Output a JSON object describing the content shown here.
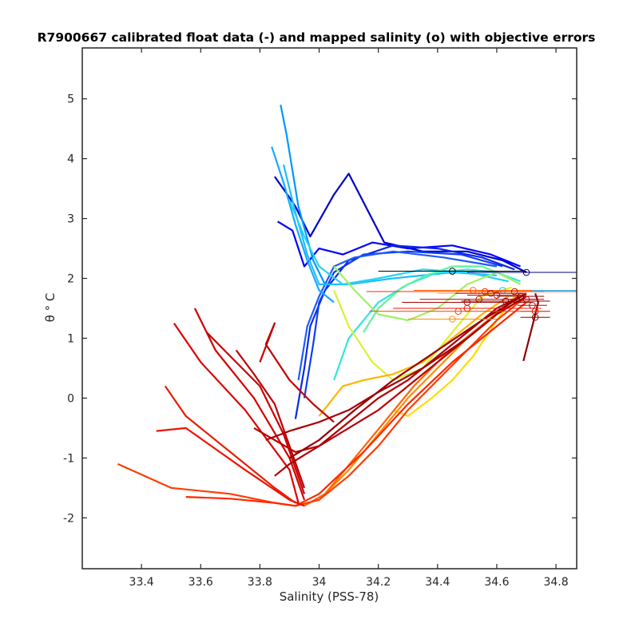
{
  "chart_data": {
    "type": "line",
    "title": "R7900667 calibrated float data (-) and mapped salinity (o) with objective errors",
    "xlabel": "Salinity (PSS-78)",
    "ylabel": "θ ° C",
    "xlim": [
      33.2,
      34.87
    ],
    "ylim": [
      -2.85,
      5.85
    ],
    "xticks": [
      "33.4",
      "33.6",
      "33.8",
      "34",
      "34.2",
      "34.4",
      "34.6",
      "34.8"
    ],
    "xtick_values": [
      33.4,
      33.6,
      33.8,
      34.0,
      34.2,
      34.4,
      34.6,
      34.8
    ],
    "yticks": [
      "-2",
      "-1",
      "0",
      "1",
      "2",
      "3",
      "4",
      "5"
    ],
    "ytick_values": [
      -2,
      -1,
      0,
      1,
      2,
      3,
      4,
      5
    ],
    "grid": false,
    "colormap": "jet",
    "series": [
      {
        "color": "#0000c8",
        "x": [
          33.85,
          33.9,
          33.92,
          33.97,
          34.05,
          34.1,
          34.22,
          34.35,
          34.5,
          34.62,
          34.7
        ],
        "y": [
          3.7,
          3.35,
          3.2,
          2.7,
          3.4,
          3.75,
          2.6,
          2.45,
          2.45,
          2.3,
          2.1
        ]
      },
      {
        "color": "#0000ff",
        "x": [
          33.86,
          33.91,
          33.95,
          34.0,
          34.08,
          34.18,
          34.3,
          34.45,
          34.58,
          34.68
        ],
        "y": [
          2.95,
          2.8,
          2.2,
          2.5,
          2.4,
          2.6,
          2.5,
          2.55,
          2.4,
          2.2
        ]
      },
      {
        "color": "#0a28e6",
        "x": [
          33.92,
          33.95,
          33.97,
          34.02,
          34.1,
          34.25,
          34.4,
          34.55,
          34.66
        ],
        "y": [
          -0.35,
          0.5,
          1.2,
          1.8,
          2.3,
          2.55,
          2.5,
          2.35,
          2.15
        ]
      },
      {
        "color": "#0f3cf0",
        "x": [
          33.95,
          33.98,
          34.0,
          34.05,
          34.15,
          34.3,
          34.48,
          34.62
        ],
        "y": [
          0.0,
          0.9,
          1.6,
          2.1,
          2.4,
          2.45,
          2.4,
          2.2
        ]
      },
      {
        "color": "#1e5aff",
        "x": [
          33.93,
          33.96,
          34.0,
          34.05,
          34.12,
          34.25,
          34.42,
          34.6
        ],
        "y": [
          0.3,
          1.2,
          1.7,
          2.2,
          2.35,
          2.45,
          2.35,
          2.2
        ]
      },
      {
        "color": "#0096ff",
        "x": [
          33.87,
          33.89,
          33.93,
          33.98,
          34.02
        ],
        "y": [
          4.9,
          4.4,
          3.2,
          2.3,
          1.9
        ]
      },
      {
        "color": "#14aaff",
        "x": [
          33.84,
          33.88,
          33.92,
          33.96,
          34.0,
          34.05
        ],
        "y": [
          4.2,
          3.6,
          2.9,
          2.3,
          1.8,
          1.6
        ]
      },
      {
        "color": "#1ebeff",
        "x": [
          33.88,
          33.92,
          33.96,
          34.0,
          34.1,
          34.25,
          34.45,
          34.6
        ],
        "y": [
          3.9,
          3.1,
          2.4,
          1.9,
          1.9,
          2.0,
          2.1,
          2.05
        ]
      },
      {
        "color": "#28d2f0",
        "x": [
          33.9,
          33.95,
          34.0,
          34.08,
          34.2,
          34.35,
          34.5,
          34.64
        ],
        "y": [
          3.3,
          2.7,
          2.2,
          1.9,
          2.0,
          2.15,
          2.1,
          1.95
        ]
      },
      {
        "color": "#32e6dc",
        "x": [
          34.05,
          34.1,
          34.2,
          34.3,
          34.4,
          34.5,
          34.6,
          34.68
        ],
        "y": [
          0.3,
          1.0,
          1.6,
          1.9,
          2.1,
          2.15,
          2.1,
          1.95
        ]
      },
      {
        "color": "#64f0a0",
        "x": [
          34.15,
          34.2,
          34.28,
          34.36,
          34.45,
          34.55,
          34.65
        ],
        "y": [
          1.1,
          1.5,
          1.85,
          2.05,
          2.2,
          2.2,
          2.0
        ]
      },
      {
        "color": "#a0f064",
        "x": [
          34.05,
          34.12,
          34.2,
          34.3,
          34.4,
          34.5,
          34.6,
          34.68
        ],
        "y": [
          2.2,
          1.8,
          1.4,
          1.3,
          1.5,
          1.9,
          2.1,
          1.9
        ]
      },
      {
        "color": "#dcf032",
        "x": [
          34.05,
          34.1,
          34.18,
          34.25,
          34.35,
          34.45,
          34.55,
          34.65
        ],
        "y": [
          1.8,
          1.2,
          0.6,
          0.3,
          0.5,
          1.1,
          1.7,
          1.85
        ]
      },
      {
        "color": "#ffdc00",
        "x": [
          34.25,
          34.3,
          34.38,
          34.45,
          34.52,
          34.6,
          34.66
        ],
        "y": [
          -0.2,
          -0.3,
          0.0,
          0.3,
          0.7,
          1.3,
          1.7
        ]
      },
      {
        "color": "#ffb400",
        "x": [
          34.0,
          34.08,
          34.15,
          34.25,
          34.35,
          34.45,
          34.55,
          34.64
        ],
        "y": [
          -0.3,
          0.2,
          0.3,
          0.4,
          0.6,
          1.0,
          1.4,
          1.7
        ]
      },
      {
        "color": "#ff8c00",
        "x": [
          33.92,
          34.0,
          34.1,
          34.2,
          34.3,
          34.4,
          34.5,
          34.6,
          34.68
        ],
        "y": [
          -1.8,
          -1.7,
          -1.2,
          -0.6,
          0.0,
          0.5,
          1.0,
          1.4,
          1.75
        ]
      },
      {
        "color": "#ff6400",
        "x": [
          33.95,
          34.02,
          34.12,
          34.22,
          34.32,
          34.42,
          34.52,
          34.62,
          34.7
        ],
        "y": [
          -1.8,
          -1.6,
          -1.0,
          -0.4,
          0.2,
          0.7,
          1.1,
          1.5,
          1.75
        ]
      },
      {
        "color": "#ff3c00",
        "x": [
          33.32,
          33.5,
          33.7,
          33.85,
          33.92,
          34.0,
          34.1,
          34.2,
          34.3,
          34.4,
          34.5,
          34.6,
          34.7
        ],
        "y": [
          -1.1,
          -1.5,
          -1.6,
          -1.75,
          -1.8,
          -1.7,
          -1.3,
          -0.8,
          -0.2,
          0.3,
          0.8,
          1.3,
          1.7
        ]
      },
      {
        "color": "#ff2800",
        "x": [
          33.55,
          33.7,
          33.85,
          33.92,
          34.0,
          34.15,
          34.3,
          34.45,
          34.6,
          34.7
        ],
        "y": [
          -1.65,
          -1.68,
          -1.75,
          -1.8,
          -1.6,
          -0.9,
          -0.1,
          0.6,
          1.2,
          1.6
        ]
      },
      {
        "color": "#f01400",
        "x": [
          33.45,
          33.55,
          33.75,
          33.9,
          33.95
        ],
        "y": [
          -0.55,
          -0.5,
          -1.2,
          -1.7,
          -1.8
        ]
      },
      {
        "color": "#e61e00",
        "x": [
          33.48,
          33.55,
          33.7,
          33.85,
          33.92
        ],
        "y": [
          0.2,
          -0.3,
          -0.9,
          -1.5,
          -1.75
        ]
      },
      {
        "color": "#dc0000",
        "x": [
          33.51,
          33.6,
          33.75,
          33.9,
          33.93
        ],
        "y": [
          1.25,
          0.6,
          -0.2,
          -1.2,
          -1.75
        ]
      },
      {
        "color": "#d20000",
        "x": [
          33.58,
          33.65,
          33.78,
          33.9,
          33.95
        ],
        "y": [
          1.5,
          0.8,
          0.0,
          -1.0,
          -1.7
        ]
      },
      {
        "color": "#c80000",
        "x": [
          33.62,
          33.7,
          33.8,
          33.88,
          33.95
        ],
        "y": [
          1.1,
          0.7,
          0.2,
          -0.6,
          -1.6
        ]
      },
      {
        "color": "#c30000",
        "x": [
          33.8,
          33.85,
          33.82,
          33.9,
          33.98,
          34.05
        ],
        "y": [
          0.6,
          1.25,
          0.9,
          0.3,
          -0.1,
          -0.4
        ]
      },
      {
        "color": "#be0000",
        "x": [
          33.72,
          33.78,
          33.85,
          33.9,
          33.95
        ],
        "y": [
          0.8,
          0.4,
          -0.1,
          -0.8,
          -1.5
        ]
      },
      {
        "color": "#b90000",
        "x": [
          33.78,
          33.85,
          33.92,
          34.0,
          34.1,
          34.2,
          34.3,
          34.4,
          34.5,
          34.6,
          34.66
        ],
        "y": [
          -0.5,
          -0.7,
          -0.9,
          -0.8,
          -0.5,
          -0.2,
          0.2,
          0.6,
          1.0,
          1.4,
          1.65
        ]
      },
      {
        "color": "#af0000",
        "x": [
          33.85,
          33.9,
          34.0,
          34.1,
          34.2,
          34.3,
          34.4,
          34.5,
          34.6,
          34.68
        ],
        "y": [
          -1.3,
          -1.1,
          -0.8,
          -0.4,
          0.0,
          0.3,
          0.7,
          1.1,
          1.5,
          1.7
        ]
      },
      {
        "color": "#a50000",
        "x": [
          33.82,
          33.9,
          34.0,
          34.1,
          34.2,
          34.35,
          34.5,
          34.6,
          34.7
        ],
        "y": [
          -0.7,
          -0.55,
          -0.4,
          -0.2,
          0.1,
          0.5,
          1.0,
          1.4,
          1.7
        ]
      },
      {
        "color": "#960000",
        "x": [
          33.9,
          34.0,
          34.12,
          34.25,
          34.4,
          34.55,
          34.65,
          34.7
        ],
        "y": [
          -1.0,
          -0.7,
          -0.2,
          0.3,
          0.8,
          1.3,
          1.6,
          1.75
        ]
      },
      {
        "color": "#8c0000",
        "x": [
          34.69,
          34.72,
          34.74,
          34.73
        ],
        "y": [
          0.62,
          1.2,
          1.6,
          1.75
        ]
      }
    ],
    "mapped_salinity": [
      {
        "x": 34.45,
        "y": 2.12,
        "err": 0.25,
        "color": "#000000"
      },
      {
        "x": 34.7,
        "y": 2.1,
        "err": 0.2,
        "color": "#000080"
      },
      {
        "x": 34.62,
        "y": 1.8,
        "err": 0.3,
        "color": "#1ebeff"
      },
      {
        "x": 34.55,
        "y": 1.75,
        "err": 0.15,
        "color": "#ffb400"
      },
      {
        "x": 34.52,
        "y": 1.8,
        "err": 0.2,
        "color": "#ff6400"
      },
      {
        "x": 34.56,
        "y": 1.78,
        "err": 0.4,
        "color": "#ff2800"
      },
      {
        "x": 34.58,
        "y": 1.75,
        "err": 0.12,
        "color": "#dc0000"
      },
      {
        "x": 34.6,
        "y": 1.72,
        "err": 0.1,
        "color": "#be0000"
      },
      {
        "x": 34.54,
        "y": 1.65,
        "err": 0.2,
        "color": "#af0000"
      },
      {
        "x": 34.5,
        "y": 1.6,
        "err": 0.22,
        "color": "#a50000"
      },
      {
        "x": 34.63,
        "y": 1.62,
        "err": 0.15,
        "color": "#960000"
      },
      {
        "x": 34.68,
        "y": 1.7,
        "err": 0.08,
        "color": "#8c0000"
      },
      {
        "x": 34.7,
        "y": 1.65,
        "err": 0.06,
        "color": "#b90000"
      },
      {
        "x": 34.72,
        "y": 1.55,
        "err": 0.05,
        "color": "#c30000"
      },
      {
        "x": 34.73,
        "y": 1.45,
        "err": 0.05,
        "color": "#d20000"
      },
      {
        "x": 34.73,
        "y": 1.35,
        "err": 0.05,
        "color": "#800000"
      },
      {
        "x": 34.47,
        "y": 1.45,
        "err": 0.3,
        "color": "#ff3c00"
      },
      {
        "x": 34.45,
        "y": 1.32,
        "err": 0.15,
        "color": "#ff8c00"
      },
      {
        "x": 34.5,
        "y": 1.5,
        "err": 0.25,
        "color": "#f01400"
      },
      {
        "x": 34.66,
        "y": 1.78,
        "err": 0.1,
        "color": "#c80000"
      }
    ]
  }
}
